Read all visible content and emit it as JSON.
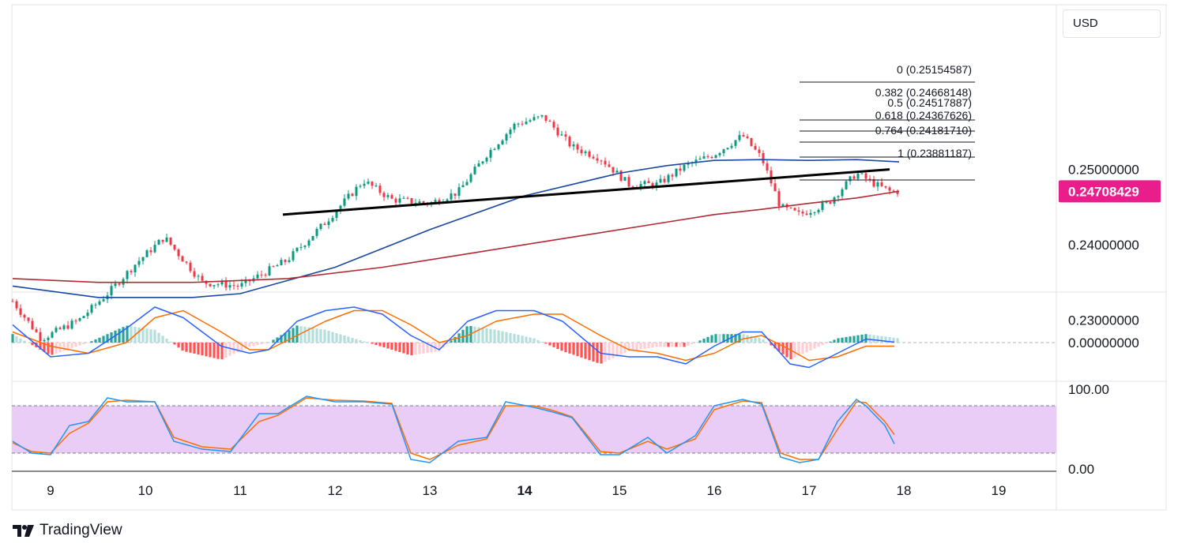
{
  "currency": "USD",
  "brand": {
    "name": "TradingView"
  },
  "colors": {
    "up": "#089981",
    "down": "#f23645",
    "ma_fast": "#1848a0",
    "ma_slow": "#b22833",
    "macd_line": "#2962ff",
    "signal_line": "#ff6d00",
    "hist_up_strong": "#26a69a",
    "hist_up_weak": "#b2dfdb",
    "hist_down_strong": "#ff5252",
    "hist_down_weak": "#ffcdd2",
    "stoch_band": "#e9cdf7",
    "price_tag": "#e91e8c"
  },
  "price_axis": {
    "ticks": [
      "0.25000000",
      "0.24000000",
      "0.23000000"
    ],
    "last_price": "0.24708429"
  },
  "macd_axis": {
    "ticks": [
      "0.00000000"
    ]
  },
  "stoch_axis": {
    "ticks": [
      "100.00",
      "0.00"
    ]
  },
  "time_axis": {
    "labels": [
      "9",
      "10",
      "11",
      "12",
      "13",
      "14",
      "15",
      "16",
      "17",
      "18",
      "19"
    ]
  },
  "fibonacci": [
    {
      "label": "0 (0.25154587)"
    },
    {
      "label": "0.382 (0.24668148)"
    },
    {
      "label": "0.5 (0.24517887)"
    },
    {
      "label": "0.618 (0.24367626)"
    },
    {
      "label": "0.764 (0.24181710)"
    },
    {
      "label": "1 (0.23881187)"
    }
  ],
  "chart_data": {
    "type": "candlestick",
    "x_unit": "day of month",
    "ylim": [
      0.2255,
      0.2545
    ],
    "x_range": [
      8.6,
      19.6
    ],
    "last_price": 0.24708429,
    "key_closes": {
      "x": [
        8.6,
        8.9,
        9.3,
        9.6,
        9.9,
        10.2,
        10.6,
        11.0,
        11.5,
        11.9,
        12.3,
        12.6,
        13.0,
        13.3,
        13.6,
        13.9,
        14.2,
        14.5,
        14.8,
        15.1,
        15.4,
        15.7,
        16.0,
        16.3,
        16.5,
        16.7,
        16.9,
        17.2,
        17.5,
        17.7,
        17.85
      ],
      "close": [
        0.2325,
        0.2275,
        0.23,
        0.2335,
        0.2375,
        0.241,
        0.235,
        0.2345,
        0.238,
        0.243,
        0.2485,
        0.246,
        0.2455,
        0.247,
        0.252,
        0.256,
        0.257,
        0.253,
        0.2515,
        0.248,
        0.248,
        0.2505,
        0.252,
        0.2545,
        0.2515,
        0.245,
        0.244,
        0.2455,
        0.2495,
        0.248,
        0.2471
      ]
    },
    "moving_averages": [
      {
        "x": [
          8.6,
          9.5,
          10.5,
          11.0,
          12.0,
          13.0,
          14.0,
          15.0,
          15.5,
          16.0,
          16.5,
          17.0,
          17.5,
          17.95
        ],
        "y": [
          0.2345,
          0.233,
          0.233,
          0.2335,
          0.237,
          0.242,
          0.2465,
          0.2495,
          0.2505,
          0.2512,
          0.2513,
          0.2512,
          0.2513,
          0.251
        ]
      },
      {
        "x": [
          8.6,
          9.5,
          10.5,
          11.5,
          12.5,
          13.5,
          14.5,
          15.5,
          16.0,
          16.5,
          17.0,
          17.5,
          17.95
        ],
        "y": [
          0.2355,
          0.235,
          0.235,
          0.2355,
          0.237,
          0.239,
          0.241,
          0.243,
          0.244,
          0.2447,
          0.2455,
          0.2462,
          0.2471
        ]
      }
    ],
    "trendline": {
      "x": [
        11.45,
        17.85
      ],
      "y": [
        0.244,
        0.25
      ]
    },
    "fibonacci_levels": [
      {
        "ratio": 0,
        "price": 0.25154587
      },
      {
        "ratio": 0.382,
        "price": 0.24668148
      },
      {
        "ratio": 0.5,
        "price": 0.24517887
      },
      {
        "ratio": 0.618,
        "price": 0.24367626
      },
      {
        "ratio": 0.764,
        "price": 0.2418171
      },
      {
        "ratio": 1,
        "price": 0.23881187
      }
    ],
    "fib_x_range": [
      16.9,
      18.75
    ],
    "macd": {
      "x": [
        8.6,
        9.0,
        9.4,
        9.8,
        10.1,
        10.4,
        10.8,
        11.1,
        11.3,
        11.6,
        11.9,
        12.2,
        12.5,
        12.8,
        13.1,
        13.4,
        13.7,
        14.1,
        14.4,
        14.8,
        15.1,
        15.4,
        15.7,
        16.0,
        16.3,
        16.5,
        16.8,
        17.0,
        17.3,
        17.6,
        17.95
      ],
      "macd": [
        0.0005,
        -0.0004,
        -0.0003,
        0.0004,
        0.001,
        0.0007,
        -0.0001,
        -0.0003,
        -0.0002,
        0.0006,
        0.0009,
        0.001,
        0.0008,
        0.0002,
        -0.0002,
        0.0006,
        0.0009,
        0.0009,
        0.0006,
        -0.0003,
        -0.0004,
        -0.0004,
        -0.0006,
        -0.0001,
        0.0003,
        0.0003,
        -0.0006,
        -0.0007,
        -0.0003,
        0.0001,
        0.0
      ],
      "signal": [
        0.0003,
        -0.0001,
        -0.0003,
        0.0,
        0.0007,
        0.0009,
        0.0003,
        -0.0002,
        -0.0002,
        0.0002,
        0.0006,
        0.0009,
        0.0009,
        0.0005,
        0.0,
        0.0002,
        0.0006,
        0.0008,
        0.0008,
        0.0002,
        -0.0002,
        -0.0003,
        -0.0005,
        -0.0003,
        0.0001,
        0.0002,
        -0.0002,
        -0.0005,
        -0.0004,
        -0.0001,
        -0.0001
      ],
      "ylim": [
        -0.0012,
        0.0012
      ]
    },
    "stochastic": {
      "x": [
        8.6,
        8.8,
        9.0,
        9.2,
        9.4,
        9.6,
        9.8,
        10.1,
        10.3,
        10.6,
        10.9,
        11.2,
        11.4,
        11.7,
        12.0,
        12.3,
        12.6,
        12.8,
        13.0,
        13.3,
        13.6,
        13.8,
        14.1,
        14.3,
        14.5,
        14.8,
        15.0,
        15.3,
        15.5,
        15.8,
        16.0,
        16.3,
        16.5,
        16.7,
        16.9,
        17.1,
        17.3,
        17.5,
        17.6,
        17.8,
        17.95
      ],
      "k": [
        35,
        20,
        18,
        55,
        60,
        90,
        85,
        85,
        35,
        25,
        22,
        70,
        70,
        92,
        85,
        85,
        82,
        12,
        8,
        35,
        40,
        85,
        78,
        72,
        65,
        18,
        18,
        40,
        20,
        42,
        80,
        88,
        82,
        15,
        8,
        12,
        60,
        88,
        80,
        55,
        20
      ],
      "d": [
        33,
        22,
        20,
        45,
        58,
        85,
        87,
        85,
        40,
        28,
        25,
        60,
        68,
        90,
        87,
        86,
        83,
        20,
        12,
        30,
        38,
        80,
        80,
        74,
        66,
        22,
        20,
        35,
        25,
        38,
        75,
        86,
        84,
        20,
        12,
        12,
        50,
        85,
        84,
        60,
        35
      ],
      "band": [
        20,
        80
      ],
      "ylim": [
        0,
        100
      ]
    }
  }
}
